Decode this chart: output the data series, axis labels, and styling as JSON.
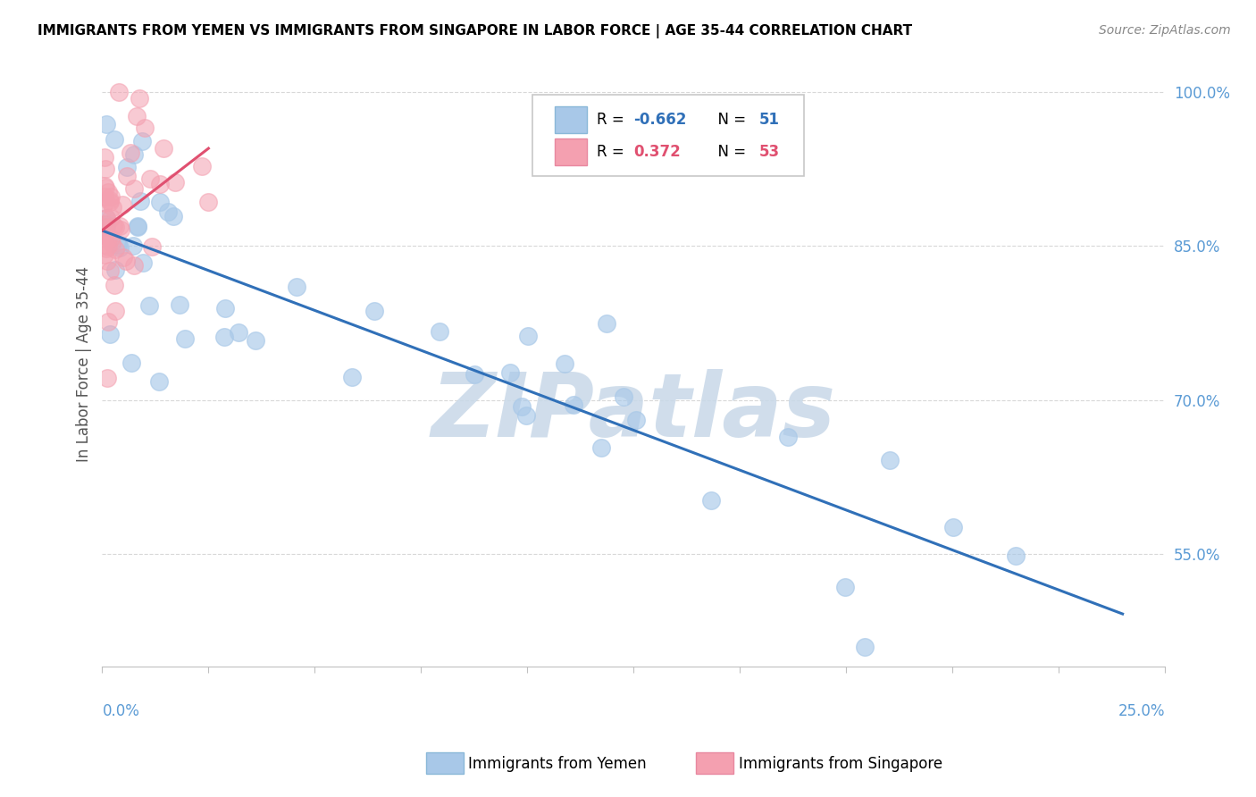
{
  "title": "IMMIGRANTS FROM YEMEN VS IMMIGRANTS FROM SINGAPORE IN LABOR FORCE | AGE 35-44 CORRELATION CHART",
  "source": "Source: ZipAtlas.com",
  "ylabel": "In Labor Force | Age 35-44",
  "xmin": 0.0,
  "xmax": 0.25,
  "ymin": 0.44,
  "ymax": 1.03,
  "y_ticks": [
    0.55,
    0.7,
    0.85,
    1.0
  ],
  "y_tick_labels": [
    "55.0%",
    "70.0%",
    "85.0%",
    "100.0%"
  ],
  "watermark": "ZIPatlas",
  "watermark_color": "#c8d8e8",
  "yemen_color": "#a8c8e8",
  "singapore_color": "#f4a0b0",
  "yemen_line_color": "#3070b8",
  "singapore_line_color": "#e05070",
  "yemen_N": 51,
  "singapore_N": 53,
  "yemen_R": -0.662,
  "singapore_R": 0.372,
  "legend_blue_text_r": "R = ",
  "legend_blue_r_val": "-0.662",
  "legend_blue_n": "N = 51",
  "legend_pink_text_r": "R = ",
  "legend_pink_r_val": "0.372",
  "legend_pink_n": "N = 53",
  "tick_color": "#5B9BD5",
  "grid_color": "#d8d8d8",
  "bottom_border_color": "#c0c0c0"
}
